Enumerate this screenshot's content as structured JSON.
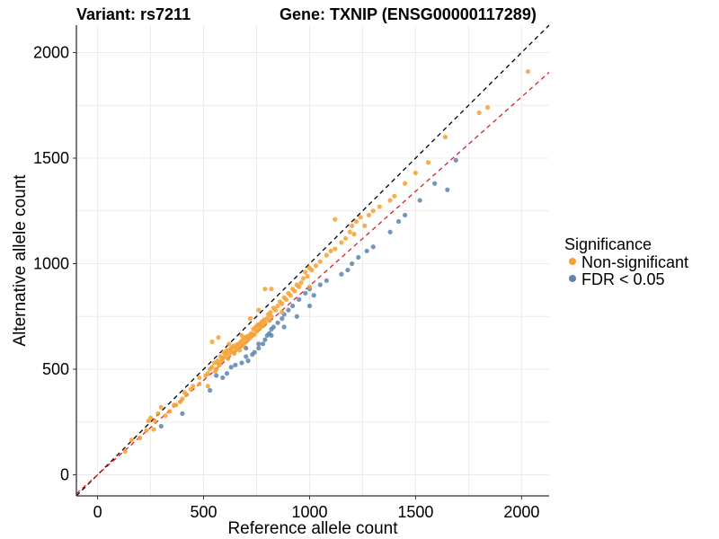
{
  "chart_data": {
    "type": "scatter",
    "title_left": "Variant: rs7211",
    "title_right": "Gene: TXNIP (ENSG00000117289)",
    "xlabel": "Reference allele count",
    "ylabel": "Alternative allele count",
    "xlim": [
      -100,
      2130
    ],
    "ylim": [
      -100,
      2130
    ],
    "x_ticks": [
      0,
      500,
      1000,
      1500,
      2000
    ],
    "y_ticks": [
      0,
      500,
      1000,
      1500,
      2000
    ],
    "x_tick_labels": [
      "0",
      "500",
      "1000",
      "1500",
      "2000"
    ],
    "y_tick_labels": [
      "0",
      "500",
      "1000",
      "1500",
      "2000"
    ],
    "grid": true,
    "legend": {
      "title": "Significance",
      "placement": "right",
      "entries": [
        "Non-significant",
        "FDR < 0.05"
      ]
    },
    "colors": {
      "Non-significant": "#f5a030",
      "FDR < 0.05": "#5b84b1",
      "identity_line": "#000000",
      "fit_line": "#e8181f",
      "grid": "#ebebeb"
    },
    "reference_lines": [
      {
        "kind": "identity",
        "intercept": 0,
        "slope": 1.0,
        "style": "dashed"
      },
      {
        "kind": "fit",
        "intercept": 0,
        "slope": 0.895,
        "style": "dashed"
      }
    ],
    "series": [
      {
        "name": "Non-significant",
        "points": [
          [
            130,
            110
          ],
          [
            160,
            165
          ],
          [
            200,
            175
          ],
          [
            230,
            210
          ],
          [
            240,
            255
          ],
          [
            250,
            270
          ],
          [
            265,
            215
          ],
          [
            270,
            255
          ],
          [
            285,
            290
          ],
          [
            300,
            320
          ],
          [
            320,
            280
          ],
          [
            340,
            300
          ],
          [
            360,
            330
          ],
          [
            370,
            330
          ],
          [
            390,
            345
          ],
          [
            400,
            360
          ],
          [
            410,
            390
          ],
          [
            420,
            380
          ],
          [
            440,
            405
          ],
          [
            450,
            420
          ],
          [
            480,
            430
          ],
          [
            510,
            470
          ],
          [
            520,
            480
          ],
          [
            530,
            500
          ],
          [
            540,
            510
          ],
          [
            550,
            530
          ],
          [
            555,
            490
          ],
          [
            560,
            500
          ],
          [
            565,
            540
          ],
          [
            570,
            525
          ],
          [
            575,
            520
          ],
          [
            580,
            560
          ],
          [
            585,
            540
          ],
          [
            590,
            550
          ],
          [
            595,
            580
          ],
          [
            600,
            560
          ],
          [
            605,
            575
          ],
          [
            610,
            590
          ],
          [
            615,
            550
          ],
          [
            620,
            570
          ],
          [
            625,
            590
          ],
          [
            630,
            600
          ],
          [
            635,
            580
          ],
          [
            640,
            610
          ],
          [
            645,
            575
          ],
          [
            650,
            595
          ],
          [
            655,
            615
          ],
          [
            660,
            600
          ],
          [
            665,
            620
          ],
          [
            670,
            590
          ],
          [
            675,
            630
          ],
          [
            680,
            610
          ],
          [
            685,
            640
          ],
          [
            690,
            620
          ],
          [
            695,
            650
          ],
          [
            700,
            630
          ],
          [
            705,
            655
          ],
          [
            710,
            640
          ],
          [
            715,
            660
          ],
          [
            720,
            650
          ],
          [
            725,
            670
          ],
          [
            730,
            660
          ],
          [
            735,
            690
          ],
          [
            740,
            665
          ],
          [
            745,
            700
          ],
          [
            750,
            680
          ],
          [
            755,
            710
          ],
          [
            760,
            690
          ],
          [
            765,
            715
          ],
          [
            770,
            700
          ],
          [
            775,
            725
          ],
          [
            780,
            705
          ],
          [
            785,
            735
          ],
          [
            790,
            720
          ],
          [
            800,
            740
          ],
          [
            805,
            760
          ],
          [
            810,
            730
          ],
          [
            815,
            770
          ],
          [
            820,
            750
          ],
          [
            830,
            790
          ],
          [
            840,
            780
          ],
          [
            850,
            800
          ],
          [
            860,
            820
          ],
          [
            870,
            810
          ],
          [
            880,
            840
          ],
          [
            890,
            830
          ],
          [
            900,
            860
          ],
          [
            910,
            850
          ],
          [
            920,
            880
          ],
          [
            930,
            870
          ],
          [
            940,
            900
          ],
          [
            950,
            890
          ],
          [
            960,
            910
          ],
          [
            970,
            930
          ],
          [
            980,
            960
          ],
          [
            990,
            940
          ],
          [
            1000,
            980
          ],
          [
            1010,
            970
          ],
          [
            1030,
            990
          ],
          [
            1050,
            1010
          ],
          [
            1080,
            1040
          ],
          [
            1100,
            1060
          ],
          [
            1120,
            1070
          ],
          [
            1150,
            1100
          ],
          [
            1170,
            1120
          ],
          [
            1190,
            1150
          ],
          [
            1200,
            1180
          ],
          [
            1210,
            1140
          ],
          [
            1220,
            1200
          ],
          [
            1240,
            1220
          ],
          [
            1260,
            1180
          ],
          [
            1280,
            1230
          ],
          [
            1300,
            1250
          ],
          [
            1330,
            1270
          ],
          [
            1380,
            1300
          ],
          [
            1400,
            1320
          ],
          [
            1450,
            1380
          ],
          [
            1500,
            1430
          ],
          [
            1560,
            1480
          ],
          [
            1640,
            1600
          ],
          [
            1800,
            1715
          ],
          [
            1840,
            1740
          ],
          [
            2030,
            1910
          ],
          [
            790,
            880
          ],
          [
            820,
            880
          ],
          [
            1120,
            1210
          ],
          [
            1000,
            890
          ],
          [
            870,
            770
          ],
          [
            540,
            630
          ],
          [
            570,
            650
          ],
          [
            720,
            740
          ],
          [
            760,
            780
          ],
          [
            520,
            420
          ],
          [
            480,
            460
          ],
          [
            620,
            620
          ],
          [
            680,
            660
          ]
        ]
      },
      {
        "name": "FDR < 0.05",
        "points": [
          [
            300,
            230
          ],
          [
            400,
            290
          ],
          [
            530,
            400
          ],
          [
            560,
            470
          ],
          [
            590,
            460
          ],
          [
            610,
            480
          ],
          [
            630,
            510
          ],
          [
            650,
            520
          ],
          [
            680,
            530
          ],
          [
            700,
            560
          ],
          [
            710,
            540
          ],
          [
            730,
            570
          ],
          [
            760,
            600
          ],
          [
            780,
            620
          ],
          [
            790,
            640
          ],
          [
            800,
            660
          ],
          [
            810,
            670
          ],
          [
            820,
            690
          ],
          [
            830,
            700
          ],
          [
            850,
            720
          ],
          [
            870,
            740
          ],
          [
            880,
            760
          ],
          [
            900,
            780
          ],
          [
            920,
            800
          ],
          [
            950,
            830
          ],
          [
            980,
            860
          ],
          [
            1000,
            880
          ],
          [
            1020,
            850
          ],
          [
            1050,
            900
          ],
          [
            1080,
            920
          ],
          [
            1150,
            950
          ],
          [
            1180,
            970
          ],
          [
            1200,
            1000
          ],
          [
            1230,
            1030
          ],
          [
            1270,
            1060
          ],
          [
            1300,
            1080
          ],
          [
            1380,
            1150
          ],
          [
            1420,
            1200
          ],
          [
            1450,
            1230
          ],
          [
            1520,
            1300
          ],
          [
            1590,
            1380
          ],
          [
            1650,
            1350
          ],
          [
            1690,
            1490
          ],
          [
            1000,
            800
          ],
          [
            940,
            750
          ],
          [
            880,
            700
          ],
          [
            820,
            660
          ],
          [
            760,
            620
          ],
          [
            740,
            580
          ],
          [
            700,
            600
          ]
        ]
      }
    ]
  }
}
